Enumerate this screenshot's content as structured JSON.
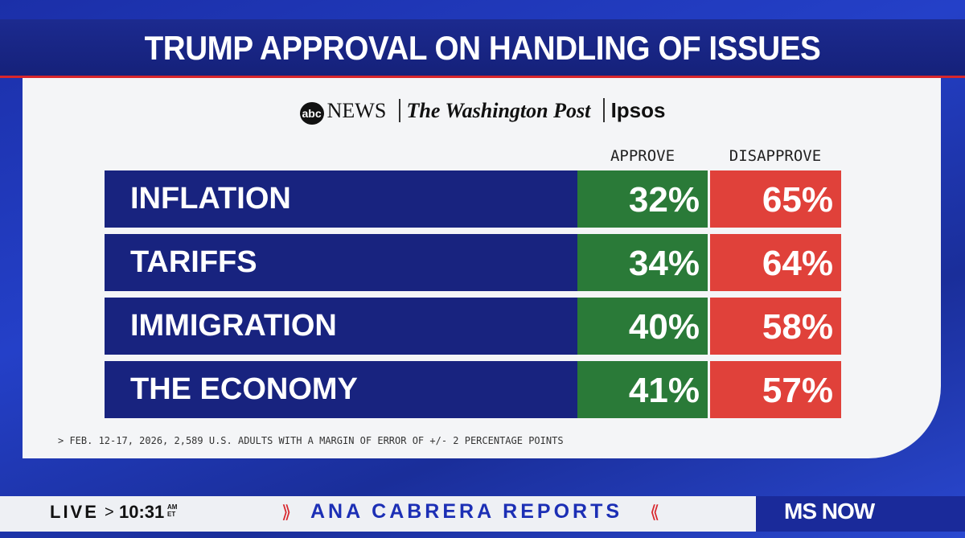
{
  "header": {
    "title": "TRUMP APPROVAL ON HANDLING OF ISSUES"
  },
  "sources": [
    "abc",
    "NEWS",
    "The Washington Post",
    "Ipsos"
  ],
  "table": {
    "columns": [
      "APPROVE",
      "DISAPPROVE"
    ],
    "rows": [
      [
        "INFLATION",
        "32%",
        "65%"
      ],
      [
        "TARIFFS",
        "34%",
        "64%"
      ],
      [
        "IMMIGRATION",
        "40%",
        "58%"
      ],
      [
        "THE ECONOMY",
        "41%",
        "57%"
      ]
    ]
  },
  "footnote": "> FEB. 12-17, 2026, 2,589 U.S. ADULTS WITH A MARGIN OF ERROR OF +/- 2 PERCENTAGE POINTS",
  "ticker": {
    "live": "LIVE",
    "time": "10:31",
    "time_suffix": "AM ET",
    "show": "ANA CABRERA REPORTS",
    "network": "MS NOW"
  }
}
